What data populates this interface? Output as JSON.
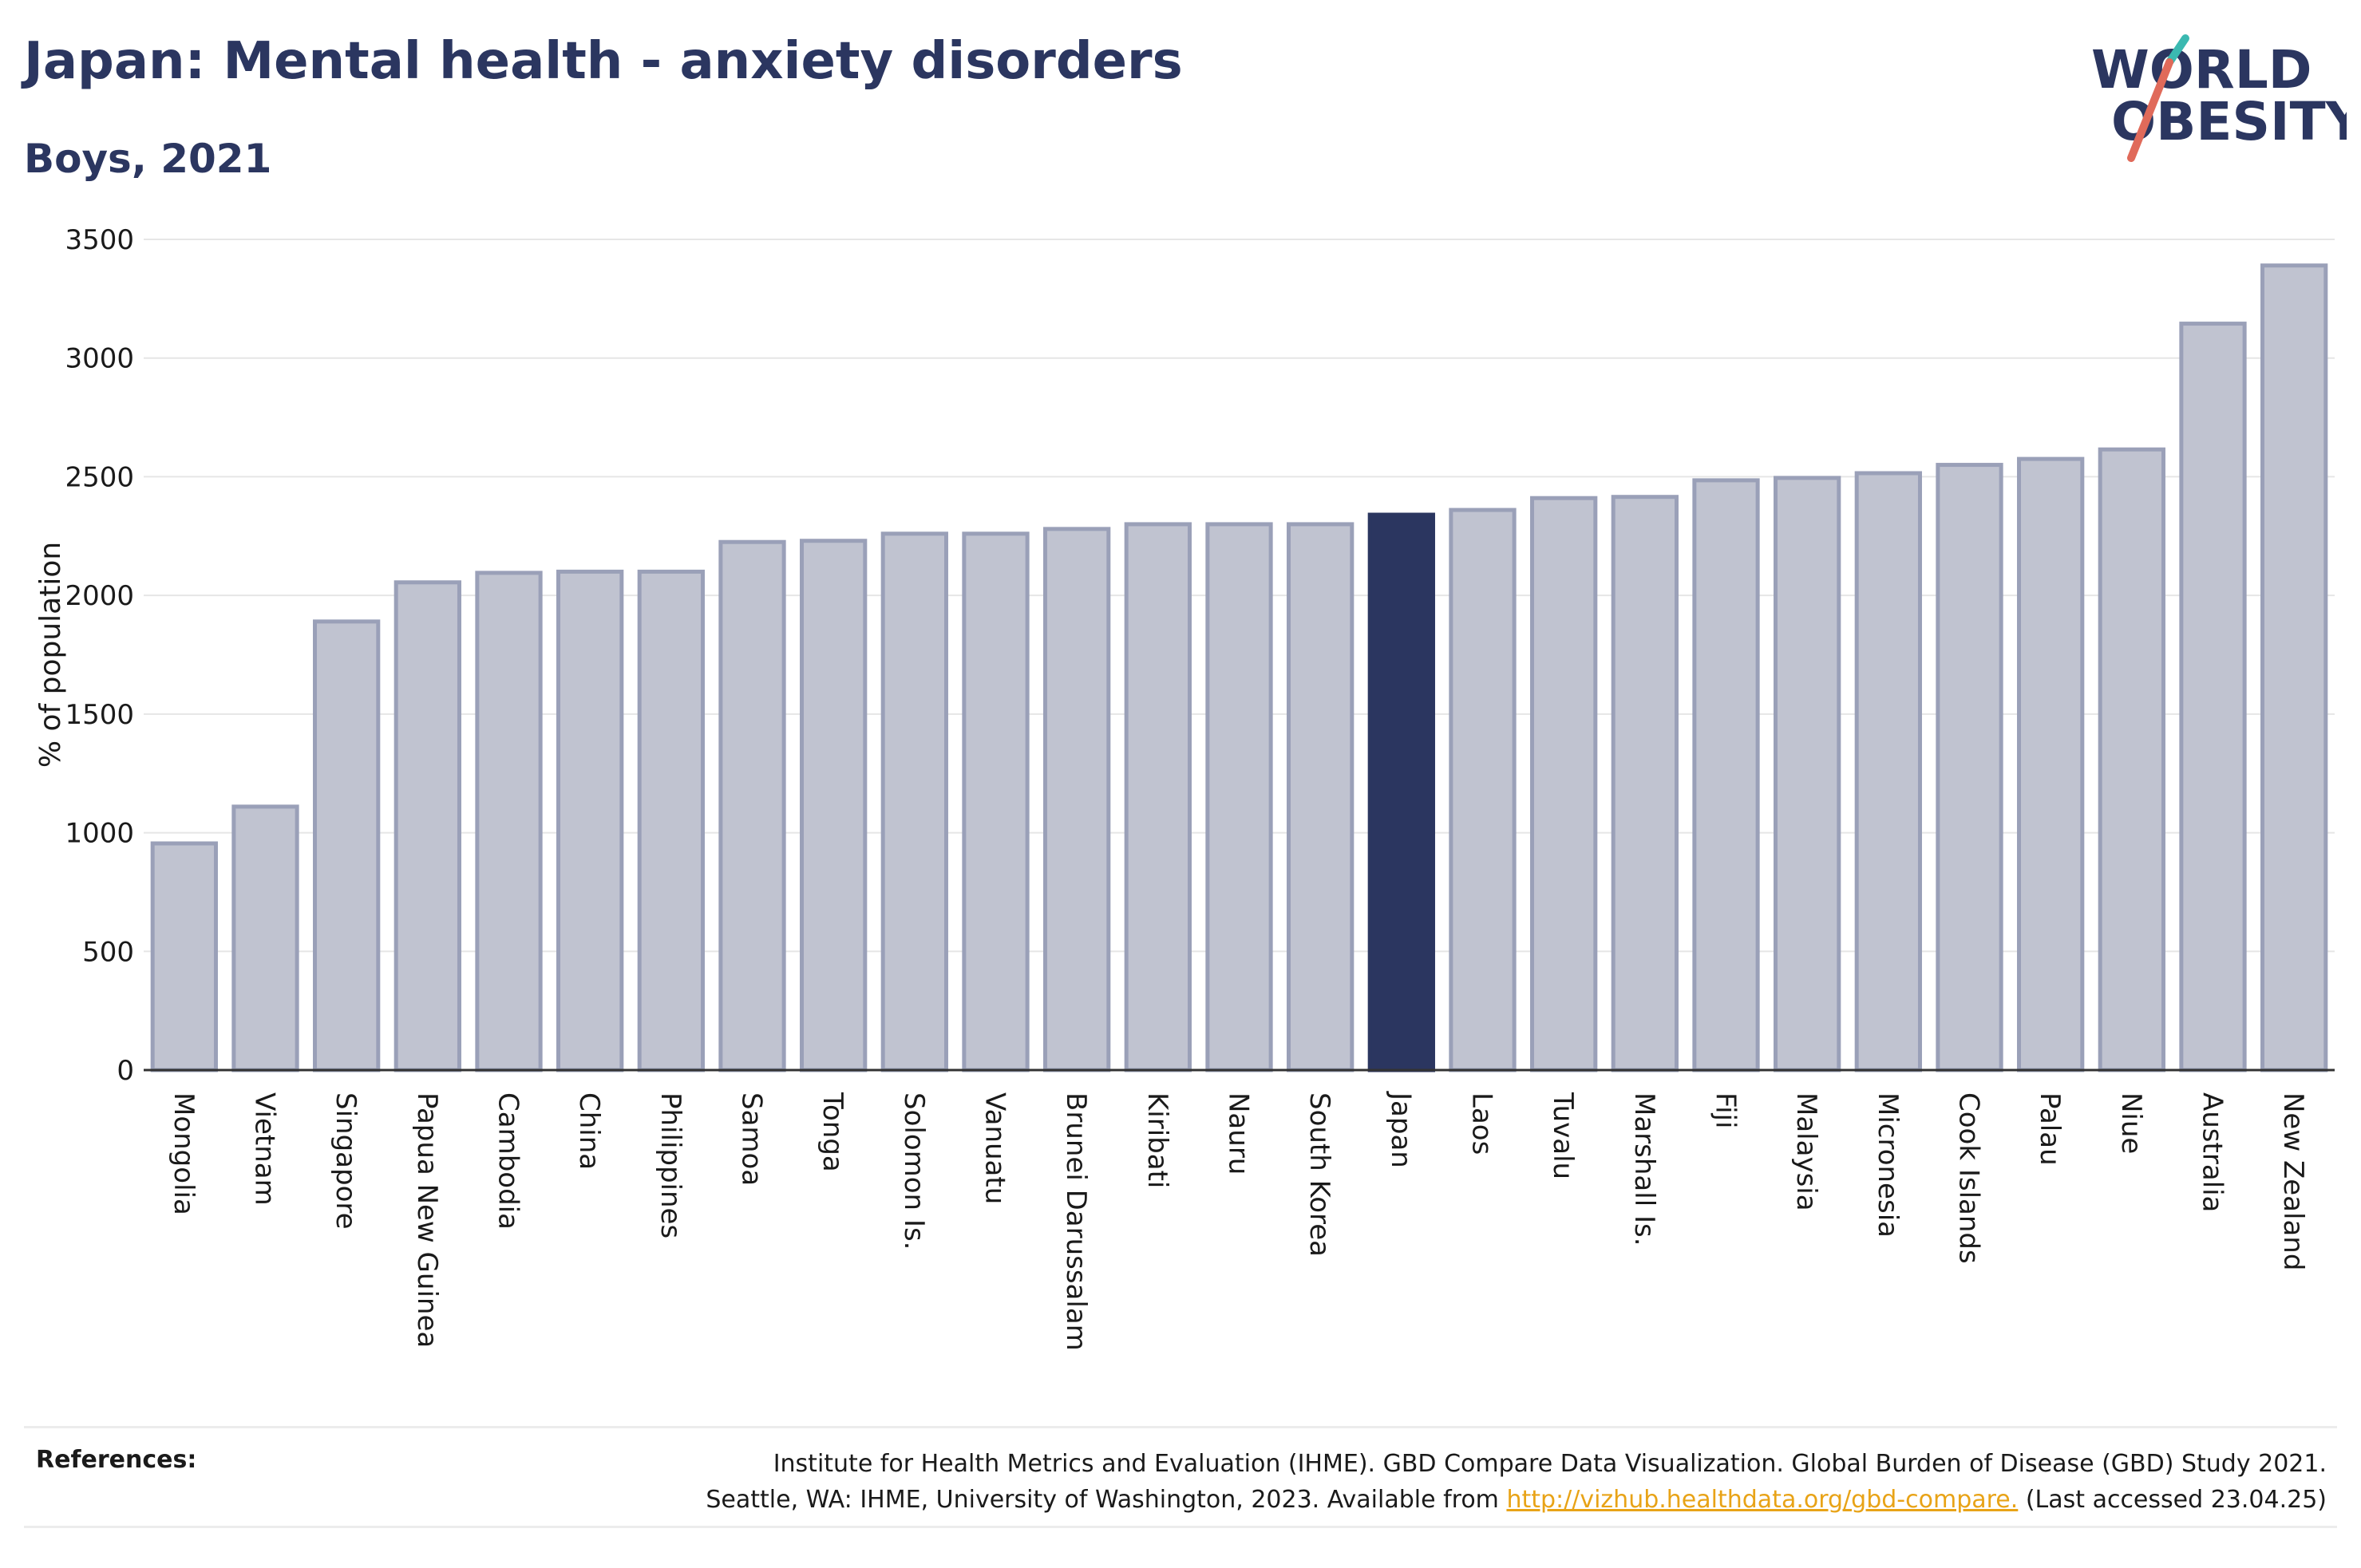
{
  "title": "Japan: Mental health - anxiety disorders",
  "subtitle": "Boys, 2021",
  "logo": {
    "line1": "WORLD",
    "line2": "OBESITY",
    "text_color": "#2b3660",
    "slash_colors": [
      "#e06a5a",
      "#3bb9b1"
    ]
  },
  "chart_data": {
    "type": "bar",
    "ylabel": "% of population",
    "xlabel": "",
    "ylim": [
      0,
      3500
    ],
    "yticks": [
      0,
      500,
      1000,
      1500,
      2000,
      2500,
      3000,
      3500
    ],
    "grid": true,
    "highlight_category": "Japan",
    "colors": {
      "bar_fill": "#c0c3d0",
      "bar_stroke": "#9aa0b8",
      "highlight_fill": "#2b3660"
    },
    "categories": [
      "Mongolia",
      "Vietnam",
      "Singapore",
      "Papua New Guinea",
      "Cambodia",
      "China",
      "Philippines",
      "Samoa",
      "Tonga",
      "Solomon Is.",
      "Vanuatu",
      "Brunei Darussalam",
      "Kiribati",
      "Nauru",
      "South Korea",
      "Japan",
      "Laos",
      "Tuvalu",
      "Marshall Is.",
      "Fiji",
      "Malaysia",
      "Micronesia",
      "Cook Islands",
      "Palau",
      "Niue",
      "Australia",
      "New Zealand"
    ],
    "values": [
      955,
      1110,
      1890,
      2055,
      2095,
      2100,
      2100,
      2225,
      2230,
      2260,
      2260,
      2280,
      2300,
      2300,
      2300,
      2340,
      2360,
      2410,
      2415,
      2485,
      2495,
      2515,
      2550,
      2575,
      2615,
      3145,
      3390
    ]
  },
  "references": {
    "label": "References:",
    "line1": "Institute for Health Metrics and Evaluation (IHME). GBD Compare Data Visualization. Global Burden of Disease (GBD) Study 2021.",
    "line2_prefix": "Seattle, WA: IHME, University of Washington, 2023. Available from ",
    "link": "http://vizhub.healthdata.org/gbd-compare.",
    "line2_suffix": " (Last accessed 23.04.25)"
  }
}
